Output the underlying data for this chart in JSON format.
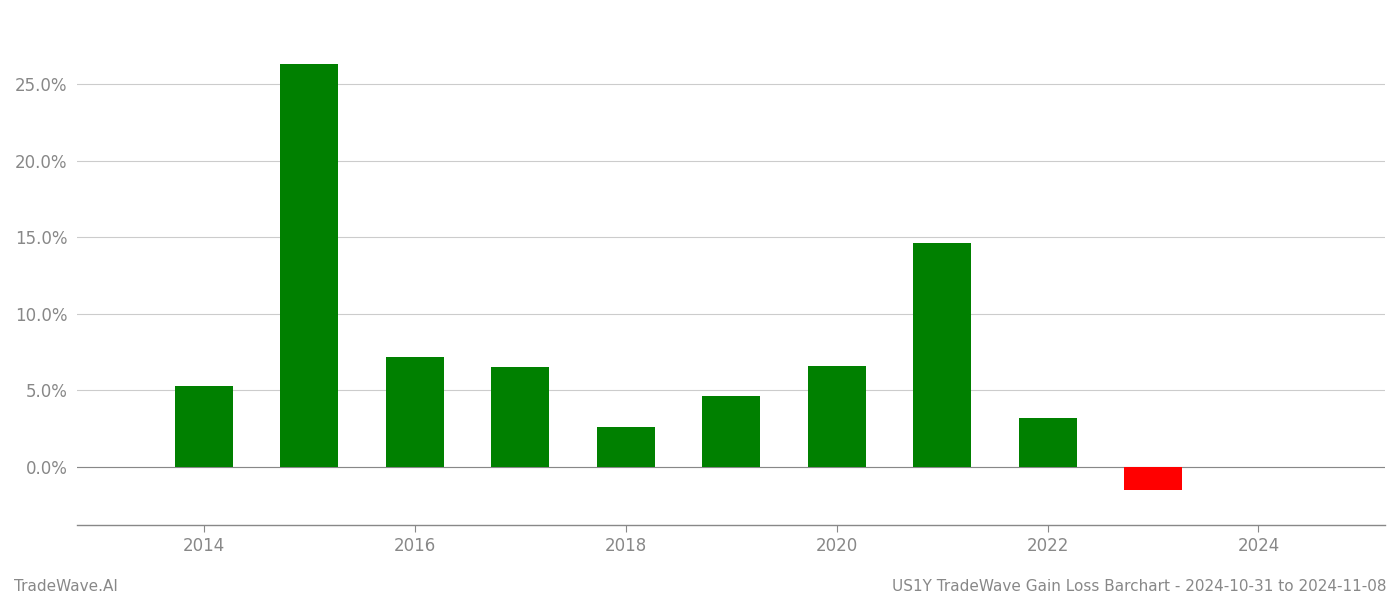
{
  "years": [
    2014,
    2015,
    2016,
    2017,
    2018,
    2019,
    2020,
    2021,
    2022,
    2023
  ],
  "values": [
    0.053,
    0.263,
    0.072,
    0.065,
    0.026,
    0.046,
    0.066,
    0.146,
    0.032,
    -0.015
  ],
  "bar_colors_positive": "#008000",
  "bar_colors_negative": "#ff0000",
  "ylim_min": -0.038,
  "ylim_max": 0.295,
  "yticks": [
    0.0,
    0.05,
    0.1,
    0.15,
    0.2,
    0.25
  ],
  "ytick_labels": [
    "0.0%",
    "5.0%",
    "10.0%",
    "15.0%",
    "20.0%",
    "25.0%"
  ],
  "xtick_labels": [
    "2014",
    "2016",
    "2018",
    "2020",
    "2022",
    "2024"
  ],
  "xtick_positions": [
    2014,
    2016,
    2018,
    2020,
    2022,
    2024
  ],
  "bar_width": 0.55,
  "background_color": "#ffffff",
  "plot_bg_color": "#ffffff",
  "grid_color": "#cccccc",
  "footer_left": "TradeWave.AI",
  "footer_right": "US1Y TradeWave Gain Loss Barchart - 2024-10-31 to 2024-11-08",
  "footer_fontsize": 11,
  "axis_label_color": "#888888",
  "spine_color": "#888888",
  "tick_fontsize": 12,
  "xlim_min": 2012.8,
  "xlim_max": 2025.2
}
